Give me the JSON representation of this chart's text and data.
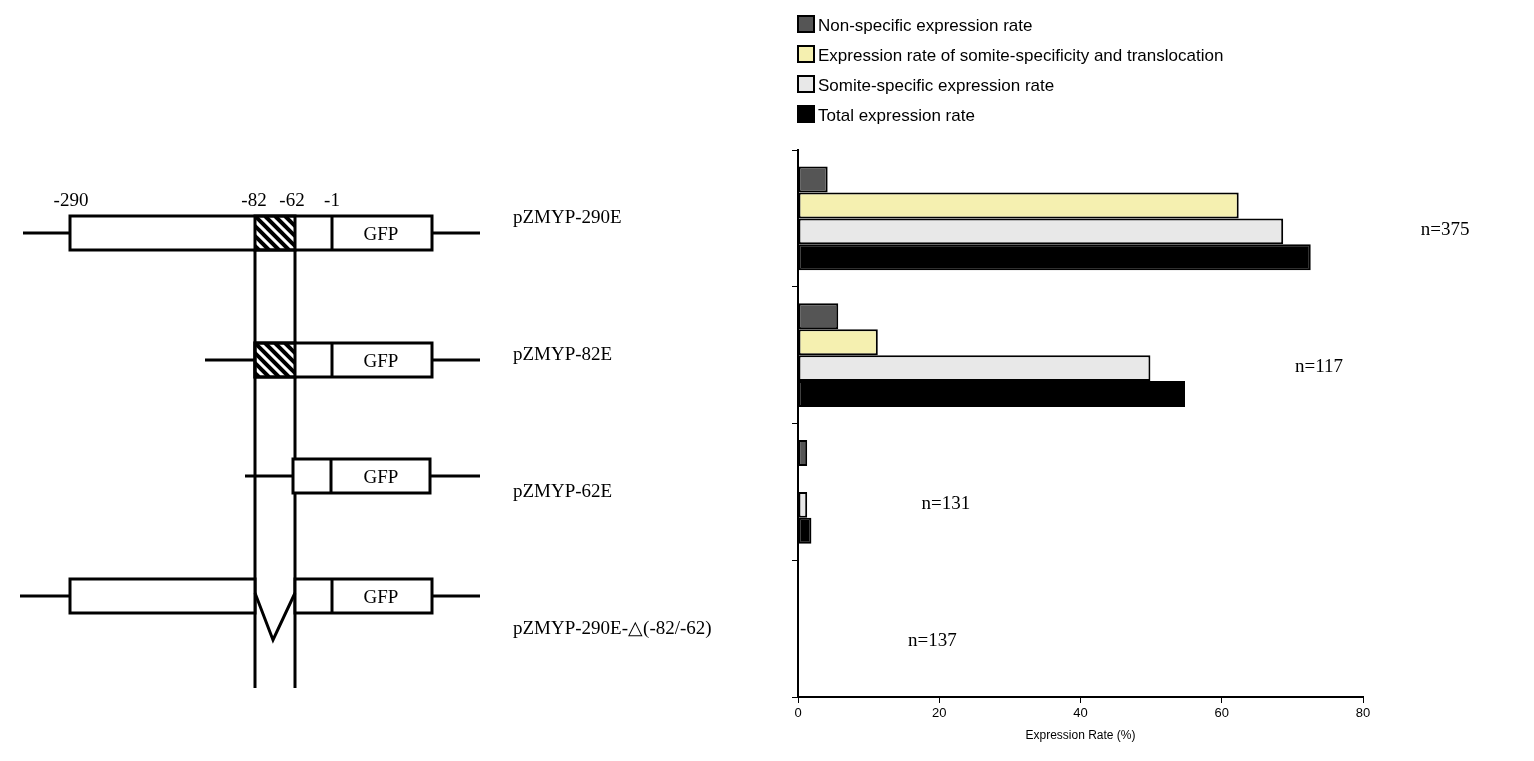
{
  "chart_data": {
    "type": "bar",
    "orientation": "horizontal",
    "xlabel": "Expression Rate (%)",
    "categories": [
      "pZMYP-290E",
      "pZMYP-82E",
      "pZMYP-62E",
      "pZMYP-290E-△(-82/-62)"
    ],
    "series": [
      {
        "name": "Non-specific expression rate",
        "color": "#555555",
        "values": [
          4.2,
          5.7,
          1.3,
          0
        ]
      },
      {
        "name": "Expression rate of somite-specificity and translocation",
        "color": "#f5f0b0",
        "values": [
          62.4,
          11.3,
          0,
          0
        ]
      },
      {
        "name": "Somite-specific expression rate",
        "color": "#e8e8e8",
        "values": [
          68.7,
          49.9,
          1.3,
          0
        ]
      },
      {
        "name": "Total expression rate",
        "color": "#000000",
        "values": [
          72.6,
          54.8,
          1.9,
          0
        ]
      }
    ],
    "xlim": [
      0,
      80
    ],
    "xticks": [
      0,
      20,
      40,
      60,
      80
    ],
    "legend": "top left",
    "annotations": [
      "-290",
      "-82",
      "-62",
      "-1",
      "GFP",
      "n=375",
      "n=117",
      "n=131",
      "n=137"
    ]
  }
}
